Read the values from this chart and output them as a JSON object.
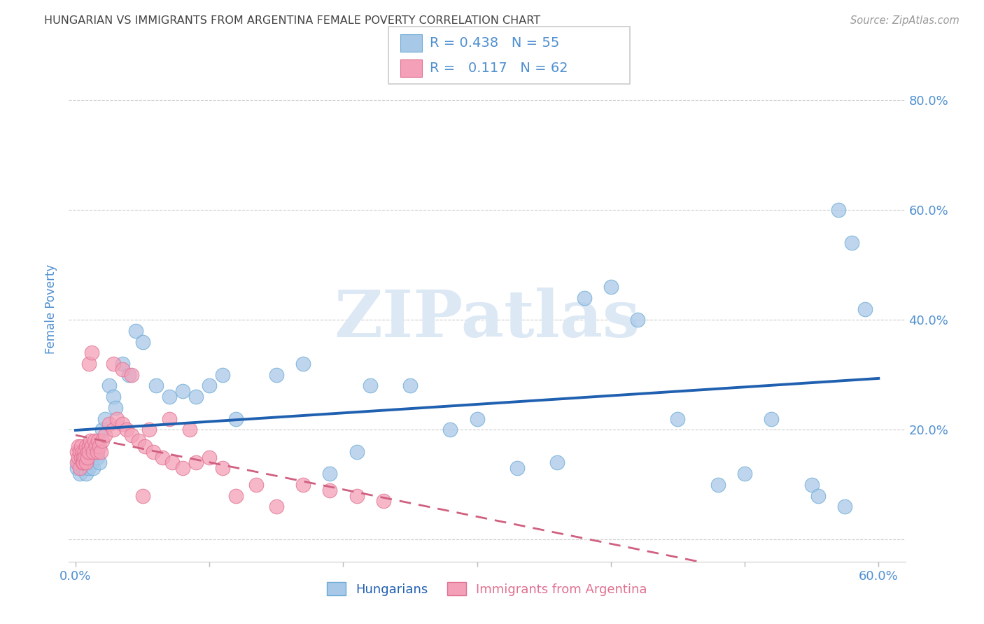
{
  "title": "HUNGARIAN VS IMMIGRANTS FROM ARGENTINA FEMALE POVERTY CORRELATION CHART",
  "source": "Source: ZipAtlas.com",
  "ylabel": "Female Poverty",
  "xlim": [
    -0.005,
    0.62
  ],
  "ylim": [
    -0.04,
    0.88
  ],
  "blue_R": 0.438,
  "blue_N": 55,
  "pink_R": 0.117,
  "pink_N": 62,
  "blue_color": "#a8c8e8",
  "blue_edge": "#6aaad4",
  "pink_color": "#f4a0b8",
  "pink_edge": "#e07090",
  "blue_line_color": "#2060b0",
  "pink_line_color": "#d06080",
  "background_color": "#ffffff",
  "grid_color": "#cccccc",
  "title_color": "#444444",
  "axis_label_color": "#5090d0",
  "tick_color": "#5090d0",
  "watermark_color": "#dde8f5",
  "legend_label_blue": "Hungarians",
  "legend_label_pink": "Immigrants from Argentina",
  "blue_x": [
    0.001,
    0.002,
    0.003,
    0.004,
    0.005,
    0.006,
    0.007,
    0.008,
    0.009,
    0.01,
    0.011,
    0.012,
    0.013,
    0.015,
    0.016,
    0.018,
    0.02,
    0.022,
    0.025,
    0.028,
    0.03,
    0.035,
    0.04,
    0.045,
    0.05,
    0.06,
    0.07,
    0.08,
    0.09,
    0.1,
    0.11,
    0.12,
    0.15,
    0.17,
    0.19,
    0.21,
    0.22,
    0.25,
    0.28,
    0.3,
    0.33,
    0.36,
    0.38,
    0.4,
    0.42,
    0.45,
    0.48,
    0.5,
    0.52,
    0.55,
    0.57,
    0.58,
    0.59,
    0.555,
    0.575
  ],
  "blue_y": [
    0.13,
    0.14,
    0.12,
    0.15,
    0.13,
    0.14,
    0.13,
    0.12,
    0.14,
    0.13,
    0.15,
    0.14,
    0.13,
    0.16,
    0.15,
    0.14,
    0.2,
    0.22,
    0.28,
    0.26,
    0.24,
    0.32,
    0.3,
    0.38,
    0.36,
    0.28,
    0.26,
    0.27,
    0.26,
    0.28,
    0.3,
    0.22,
    0.3,
    0.32,
    0.12,
    0.16,
    0.28,
    0.28,
    0.2,
    0.22,
    0.13,
    0.14,
    0.44,
    0.46,
    0.4,
    0.22,
    0.1,
    0.12,
    0.22,
    0.1,
    0.6,
    0.54,
    0.42,
    0.08,
    0.06
  ],
  "pink_x": [
    0.001,
    0.001,
    0.002,
    0.002,
    0.003,
    0.003,
    0.004,
    0.004,
    0.005,
    0.005,
    0.006,
    0.006,
    0.007,
    0.007,
    0.008,
    0.008,
    0.009,
    0.009,
    0.01,
    0.01,
    0.011,
    0.012,
    0.013,
    0.014,
    0.015,
    0.016,
    0.017,
    0.018,
    0.019,
    0.02,
    0.022,
    0.025,
    0.028,
    0.031,
    0.035,
    0.038,
    0.042,
    0.047,
    0.052,
    0.058,
    0.065,
    0.072,
    0.08,
    0.09,
    0.1,
    0.11,
    0.12,
    0.135,
    0.15,
    0.17,
    0.19,
    0.21,
    0.23,
    0.05,
    0.028,
    0.035,
    0.042,
    0.055,
    0.07,
    0.085,
    0.01,
    0.012
  ],
  "pink_y": [
    0.14,
    0.16,
    0.15,
    0.17,
    0.13,
    0.16,
    0.15,
    0.17,
    0.14,
    0.16,
    0.15,
    0.14,
    0.16,
    0.15,
    0.17,
    0.14,
    0.16,
    0.15,
    0.17,
    0.16,
    0.18,
    0.17,
    0.16,
    0.18,
    0.17,
    0.16,
    0.18,
    0.17,
    0.16,
    0.18,
    0.19,
    0.21,
    0.2,
    0.22,
    0.21,
    0.2,
    0.19,
    0.18,
    0.17,
    0.16,
    0.15,
    0.14,
    0.13,
    0.14,
    0.15,
    0.13,
    0.08,
    0.1,
    0.06,
    0.1,
    0.09,
    0.08,
    0.07,
    0.08,
    0.32,
    0.31,
    0.3,
    0.2,
    0.22,
    0.2,
    0.32,
    0.34
  ]
}
